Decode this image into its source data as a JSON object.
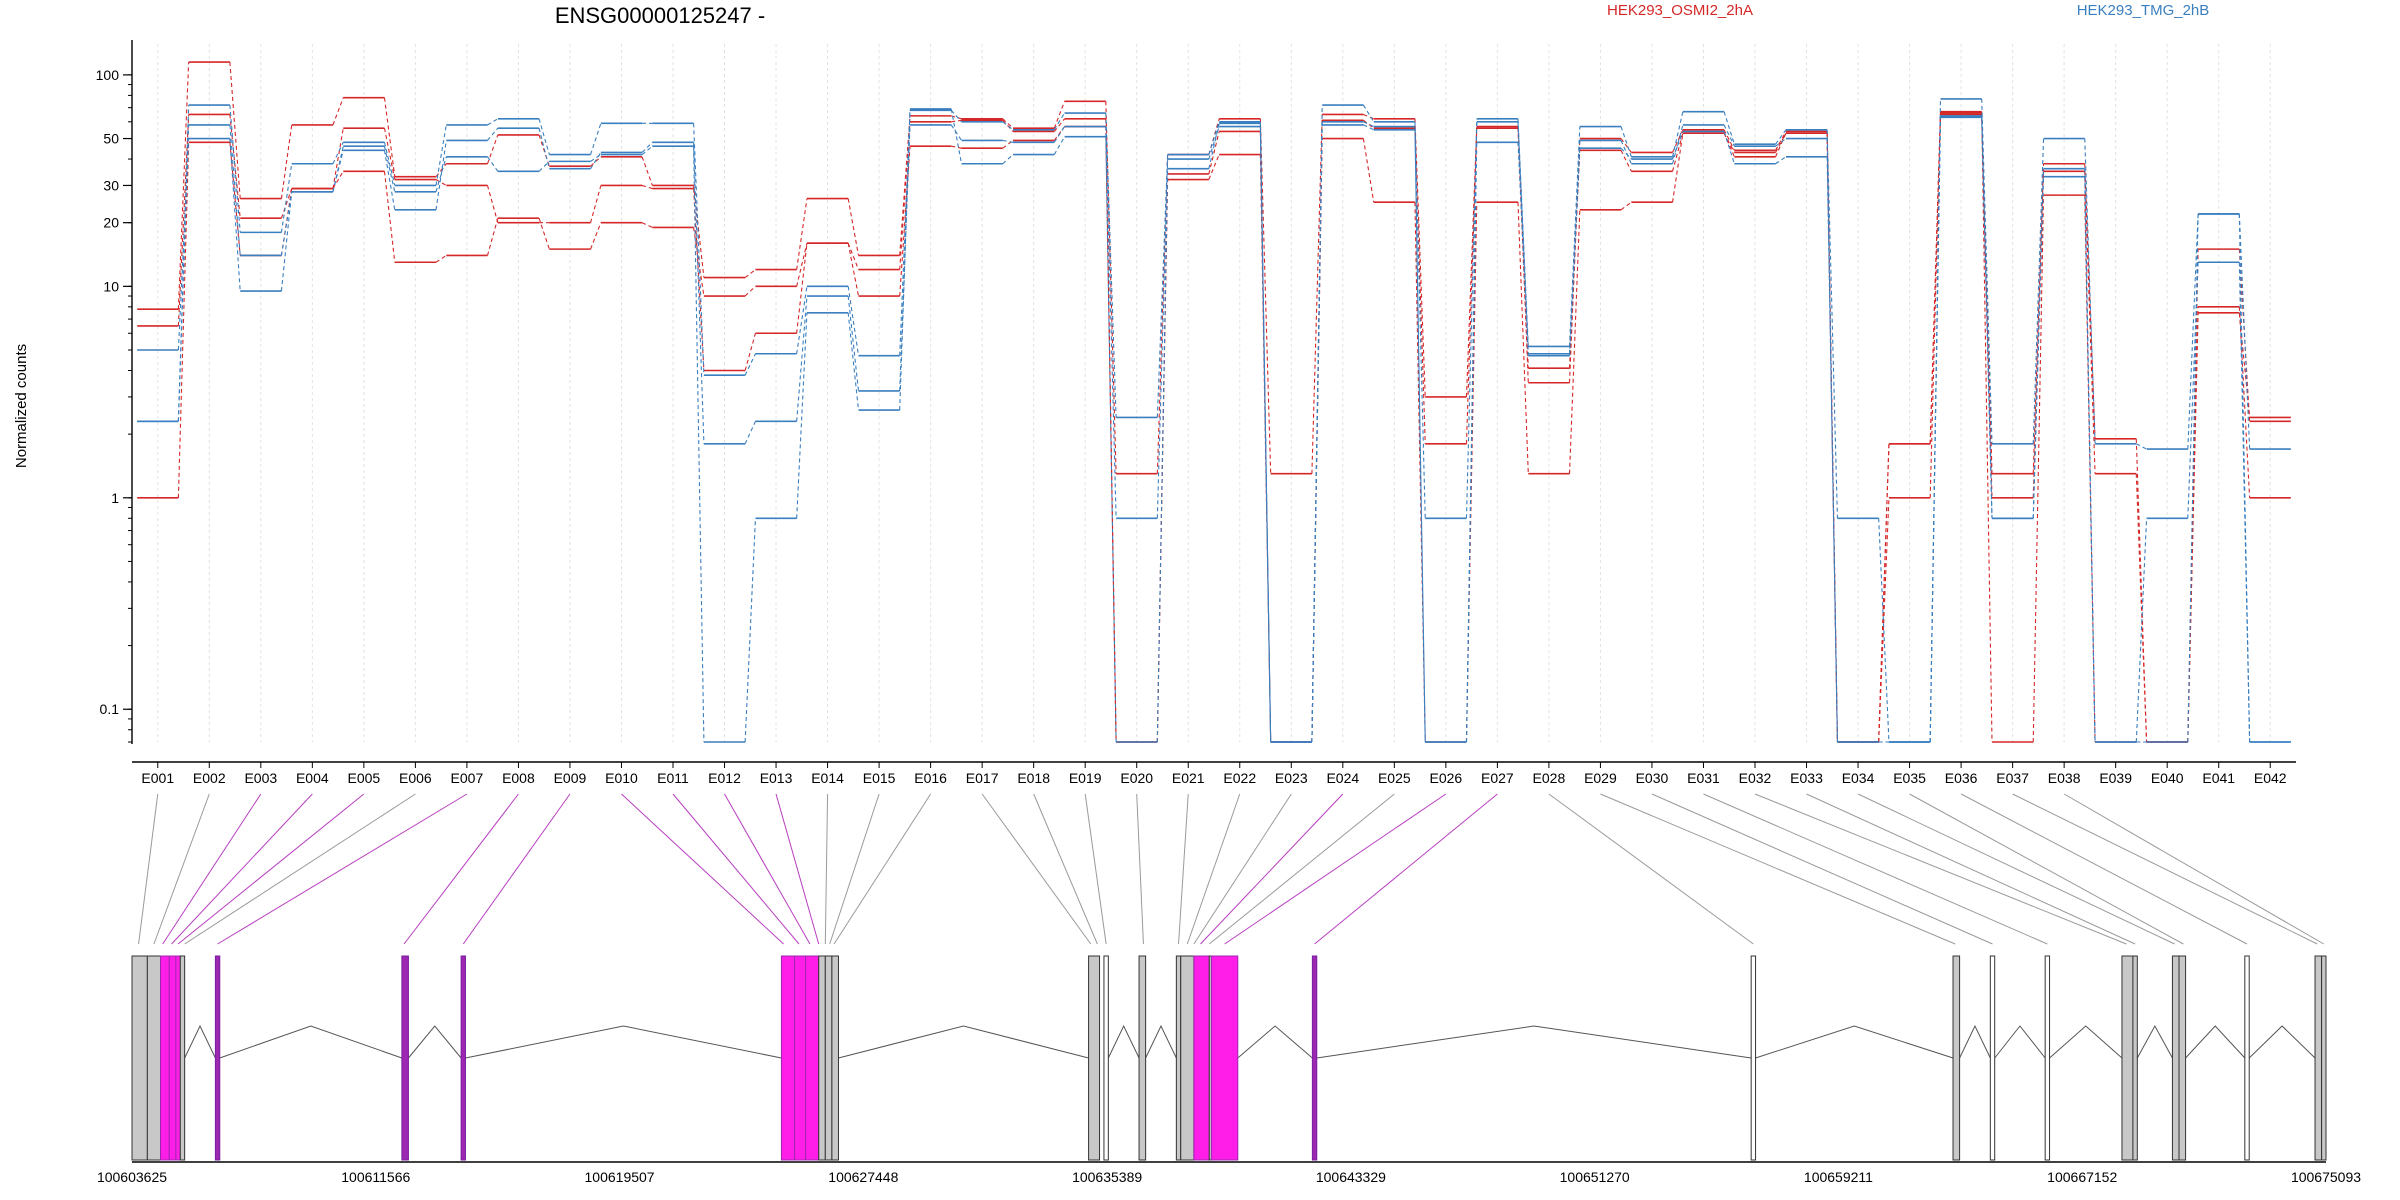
{
  "chart_data": {
    "type": "line",
    "title": "ENSG00000125247 -",
    "ylabel": "Normalized counts",
    "yscale": "log",
    "ylim": [
      0.07,
      140
    ],
    "grid": "vertical-dashed",
    "yticks": [
      {
        "v": 0.1,
        "label": "0.1"
      },
      {
        "v": 1,
        "label": "1"
      },
      {
        "v": 10,
        "label": "10"
      },
      {
        "v": 20,
        "label": "20"
      },
      {
        "v": 30,
        "label": "30"
      },
      {
        "v": 50,
        "label": "50"
      },
      {
        "v": 100,
        "label": "100"
      }
    ],
    "categories": [
      "E001",
      "E002",
      "E003",
      "E004",
      "E005",
      "E006",
      "E007",
      "E008",
      "E009",
      "E010",
      "E011",
      "E012",
      "E013",
      "E014",
      "E015",
      "E016",
      "E017",
      "E018",
      "E019",
      "E020",
      "E021",
      "E022",
      "E023",
      "E024",
      "E025",
      "E026",
      "E027",
      "E028",
      "E029",
      "E030",
      "E031",
      "E032",
      "E033",
      "E034",
      "E035",
      "E036",
      "E037",
      "E038",
      "E039",
      "E040",
      "E041",
      "E042"
    ],
    "legend": [
      {
        "name": "HEK293_OSMI2_2hA",
        "color": "#d62728"
      },
      {
        "name": "HEK293_TMG_2hB",
        "color": "#3a7fbf"
      }
    ],
    "series": [
      {
        "group": "HEK293_OSMI2_2hA",
        "color": "#d62728",
        "values": [
          7.8,
          115,
          26,
          58,
          78,
          33,
          38,
          52,
          37,
          41,
          30,
          11,
          12,
          26,
          14,
          64,
          62,
          56,
          75,
          1.3,
          42,
          62,
          1.3,
          65,
          62,
          3,
          57,
          3.5,
          50,
          43,
          55,
          44,
          54,
          0.07,
          1.0,
          66,
          1.3,
          38,
          1.9,
          0.07,
          15,
          2.3
        ]
      },
      {
        "group": "HEK293_OSMI2_2hA",
        "color": "#d62728",
        "values": [
          6.5,
          65,
          21,
          29,
          56,
          32,
          30,
          20,
          20,
          30,
          29,
          4,
          6,
          16,
          12,
          60,
          61,
          54,
          62,
          0.07,
          34,
          54,
          0.07,
          61,
          56,
          1.8,
          56,
          4.1,
          44,
          35,
          53,
          43,
          53,
          0.07,
          1.8,
          65,
          1.0,
          35,
          1.3,
          0.07,
          8,
          1.0
        ]
      },
      {
        "group": "HEK293_OSMI2_2hA",
        "color": "#d62728",
        "values": [
          1.0,
          48,
          14,
          29,
          35,
          13,
          14,
          21,
          15,
          20,
          19,
          9,
          10,
          16,
          9,
          46,
          45,
          49,
          57,
          0.07,
          32,
          42,
          0.07,
          50,
          25,
          0.07,
          25,
          1.3,
          23,
          25,
          53,
          41,
          53,
          0.07,
          1.8,
          67,
          0.07,
          27,
          0.07,
          0.07,
          7.5,
          2.4
        ]
      },
      {
        "group": "HEK293_TMG_2hB",
        "color": "#3a7fbf",
        "values": [
          2.3,
          72,
          18,
          38,
          48,
          30,
          58,
          62,
          42,
          59,
          59,
          3.8,
          4.8,
          10,
          4.7,
          68,
          60,
          55,
          66,
          2.4,
          42,
          60,
          0.07,
          72,
          60,
          0.8,
          62,
          5.2,
          57,
          41,
          67,
          47,
          55,
          0.8,
          0.07,
          77,
          1.8,
          50,
          1.8,
          1.7,
          22,
          1.7
        ]
      },
      {
        "group": "HEK293_TMG_2hB",
        "color": "#3a7fbf",
        "values": [
          2.3,
          58,
          14,
          28,
          44,
          23,
          49,
          56,
          36,
          43,
          48,
          1.8,
          2.3,
          9,
          3.2,
          58,
          49,
          48,
          57,
          0.8,
          40,
          57,
          0.07,
          60,
          57,
          0.07,
          60,
          4.8,
          49,
          38,
          58,
          46,
          50,
          0.07,
          0.07,
          64,
          0.8,
          36,
          0.07,
          0.8,
          13,
          0.07
        ]
      },
      {
        "group": "HEK293_TMG_2hB",
        "color": "#3a7fbf",
        "values": [
          5.0,
          50,
          9.5,
          28,
          46,
          28,
          41,
          35,
          39,
          42,
          46,
          0.07,
          0.8,
          7.5,
          2.6,
          69,
          38,
          42,
          51,
          0.07,
          36,
          59,
          0.07,
          58,
          55,
          0.07,
          48,
          4.7,
          45,
          40,
          54,
          38,
          41,
          0.07,
          0.07,
          63,
          0.8,
          33,
          0.07,
          0.07,
          22,
          0.07
        ]
      }
    ],
    "gene_model": {
      "coordinates": [
        "100603625",
        "100611566",
        "100619507",
        "100627448",
        "100635389",
        "100643329",
        "100651270",
        "100659211",
        "100667152",
        "100675093"
      ],
      "blocks": [
        {
          "s": 0.0,
          "e": 0.007,
          "c": "gray"
        },
        {
          "s": 0.007,
          "e": 0.013,
          "c": "gray"
        },
        {
          "s": 0.013,
          "e": 0.017,
          "c": "magenta"
        },
        {
          "s": 0.017,
          "e": 0.02,
          "c": "magenta"
        },
        {
          "s": 0.02,
          "e": 0.022,
          "c": "magenta"
        },
        {
          "s": 0.022,
          "e": 0.024,
          "c": "gray"
        },
        {
          "s": 0.038,
          "e": 0.04,
          "c": "purple"
        },
        {
          "s": 0.123,
          "e": 0.126,
          "c": "purple"
        },
        {
          "s": 0.15,
          "e": 0.152,
          "c": "purple"
        },
        {
          "s": 0.296,
          "e": 0.302,
          "c": "magenta"
        },
        {
          "s": 0.302,
          "e": 0.307,
          "c": "magenta"
        },
        {
          "s": 0.307,
          "e": 0.313,
          "c": "magenta"
        },
        {
          "s": 0.313,
          "e": 0.316,
          "c": "gray"
        },
        {
          "s": 0.316,
          "e": 0.319,
          "c": "gray"
        },
        {
          "s": 0.319,
          "e": 0.322,
          "c": "gray"
        },
        {
          "s": 0.436,
          "e": 0.441,
          "c": "gray"
        },
        {
          "s": 0.443,
          "e": 0.445,
          "c": "white"
        },
        {
          "s": 0.459,
          "e": 0.462,
          "c": "gray"
        },
        {
          "s": 0.476,
          "e": 0.478,
          "c": "gray"
        },
        {
          "s": 0.478,
          "e": 0.484,
          "c": "gray"
        },
        {
          "s": 0.484,
          "e": 0.491,
          "c": "magenta"
        },
        {
          "s": 0.491,
          "e": 0.492,
          "c": "gray"
        },
        {
          "s": 0.492,
          "e": 0.504,
          "c": "magenta"
        },
        {
          "s": 0.538,
          "e": 0.54,
          "c": "purple"
        },
        {
          "s": 0.738,
          "e": 0.74,
          "c": "white"
        },
        {
          "s": 0.83,
          "e": 0.833,
          "c": "gray"
        },
        {
          "s": 0.847,
          "e": 0.849,
          "c": "white"
        },
        {
          "s": 0.872,
          "e": 0.874,
          "c": "white"
        },
        {
          "s": 0.907,
          "e": 0.912,
          "c": "gray"
        },
        {
          "s": 0.912,
          "e": 0.914,
          "c": "gray"
        },
        {
          "s": 0.93,
          "e": 0.933,
          "c": "gray"
        },
        {
          "s": 0.933,
          "e": 0.936,
          "c": "gray"
        },
        {
          "s": 0.963,
          "e": 0.965,
          "c": "white"
        },
        {
          "s": 0.995,
          "e": 0.998,
          "c": "gray"
        },
        {
          "s": 0.998,
          "e": 1.0,
          "c": "gray"
        }
      ],
      "connectors": [
        {
          "pos": 0.003,
          "c": "gray"
        },
        {
          "pos": 0.01,
          "c": "gray"
        },
        {
          "pos": 0.014,
          "c": "magenta"
        },
        {
          "pos": 0.018,
          "c": "magenta"
        },
        {
          "pos": 0.021,
          "c": "magenta"
        },
        {
          "pos": 0.024,
          "c": "gray"
        },
        {
          "pos": 0.039,
          "c": "magenta"
        },
        {
          "pos": 0.124,
          "c": "magenta"
        },
        {
          "pos": 0.151,
          "c": "magenta"
        },
        {
          "pos": 0.297,
          "c": "magenta"
        },
        {
          "pos": 0.304,
          "c": "magenta"
        },
        {
          "pos": 0.309,
          "c": "magenta"
        },
        {
          "pos": 0.313,
          "c": "magenta"
        },
        {
          "pos": 0.316,
          "c": "gray"
        },
        {
          "pos": 0.318,
          "c": "gray"
        },
        {
          "pos": 0.32,
          "c": "gray"
        },
        {
          "pos": 0.437,
          "c": "gray"
        },
        {
          "pos": 0.44,
          "c": "gray"
        },
        {
          "pos": 0.444,
          "c": "gray"
        },
        {
          "pos": 0.461,
          "c": "gray"
        },
        {
          "pos": 0.477,
          "c": "gray"
        },
        {
          "pos": 0.481,
          "c": "gray"
        },
        {
          "pos": 0.484,
          "c": "gray"
        },
        {
          "pos": 0.487,
          "c": "magenta"
        },
        {
          "pos": 0.491,
          "c": "gray"
        },
        {
          "pos": 0.498,
          "c": "magenta"
        },
        {
          "pos": 0.539,
          "c": "magenta"
        },
        {
          "pos": 0.739,
          "c": "gray"
        },
        {
          "pos": 0.831,
          "c": "gray"
        },
        {
          "pos": 0.848,
          "c": "gray"
        },
        {
          "pos": 0.873,
          "c": "gray"
        },
        {
          "pos": 0.909,
          "c": "gray"
        },
        {
          "pos": 0.913,
          "c": "gray"
        },
        {
          "pos": 0.931,
          "c": "gray"
        },
        {
          "pos": 0.935,
          "c": "gray"
        },
        {
          "pos": 0.964,
          "c": "gray"
        },
        {
          "pos": 0.996,
          "c": "gray"
        },
        {
          "pos": 0.999,
          "c": "gray"
        }
      ]
    }
  }
}
